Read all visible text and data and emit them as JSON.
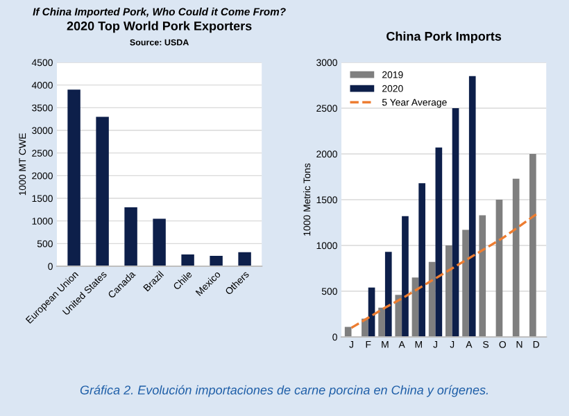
{
  "chart_data": [
    {
      "type": "bar",
      "title": "If China Imported Pork, Who Could it Come From?",
      "subtitle": "2020 Top World Pork Exporters",
      "ylabel": "1000 MT CWE",
      "categories": [
        "European Union",
        "United States",
        "Canada",
        "Brazil",
        "Chile",
        "Mexico",
        "Others"
      ],
      "values": [
        3900,
        3300,
        1300,
        1050,
        260,
        230,
        310
      ],
      "color": "#0d1f4a",
      "ylim": [
        0,
        4500
      ],
      "yticks": [
        0,
        500,
        1000,
        1500,
        2000,
        2500,
        3000,
        3500,
        4000,
        4500
      ],
      "grid": "y",
      "annotations": [
        "Source: USDA",
        "Gráfica 2. Evolución importaciones de carne porcina en China y orígenes."
      ]
    },
    {
      "type": "bar",
      "title": "China Pork Imports",
      "ylabel": "1000 Metric Tons",
      "categories": [
        "J",
        "F",
        "M",
        "A",
        "M",
        "J",
        "J",
        "A",
        "S",
        "O",
        "N",
        "D"
      ],
      "series": [
        {
          "name": "2019",
          "color": "#7f7f7f",
          "values": [
            110,
            200,
            320,
            460,
            650,
            820,
            1000,
            1170,
            1330,
            1500,
            1730,
            2000
          ]
        },
        {
          "name": "2020",
          "color": "#0d1f4a",
          "values": [
            null,
            540,
            930,
            1320,
            1680,
            2070,
            2500,
            2850,
            null,
            null,
            null,
            null
          ]
        },
        {
          "name": "5 Year Average",
          "type": "line",
          "color": "#ed7d31",
          "line_style": "dashed",
          "values": [
            100,
            210,
            320,
            420,
            530,
            640,
            750,
            860,
            970,
            1080,
            1210,
            1340
          ]
        }
      ],
      "ylim": [
        0,
        3000
      ],
      "yticks": [
        0,
        500,
        1000,
        1500,
        2000,
        2500,
        3000
      ],
      "grid": "y",
      "legend": "top left"
    }
  ]
}
